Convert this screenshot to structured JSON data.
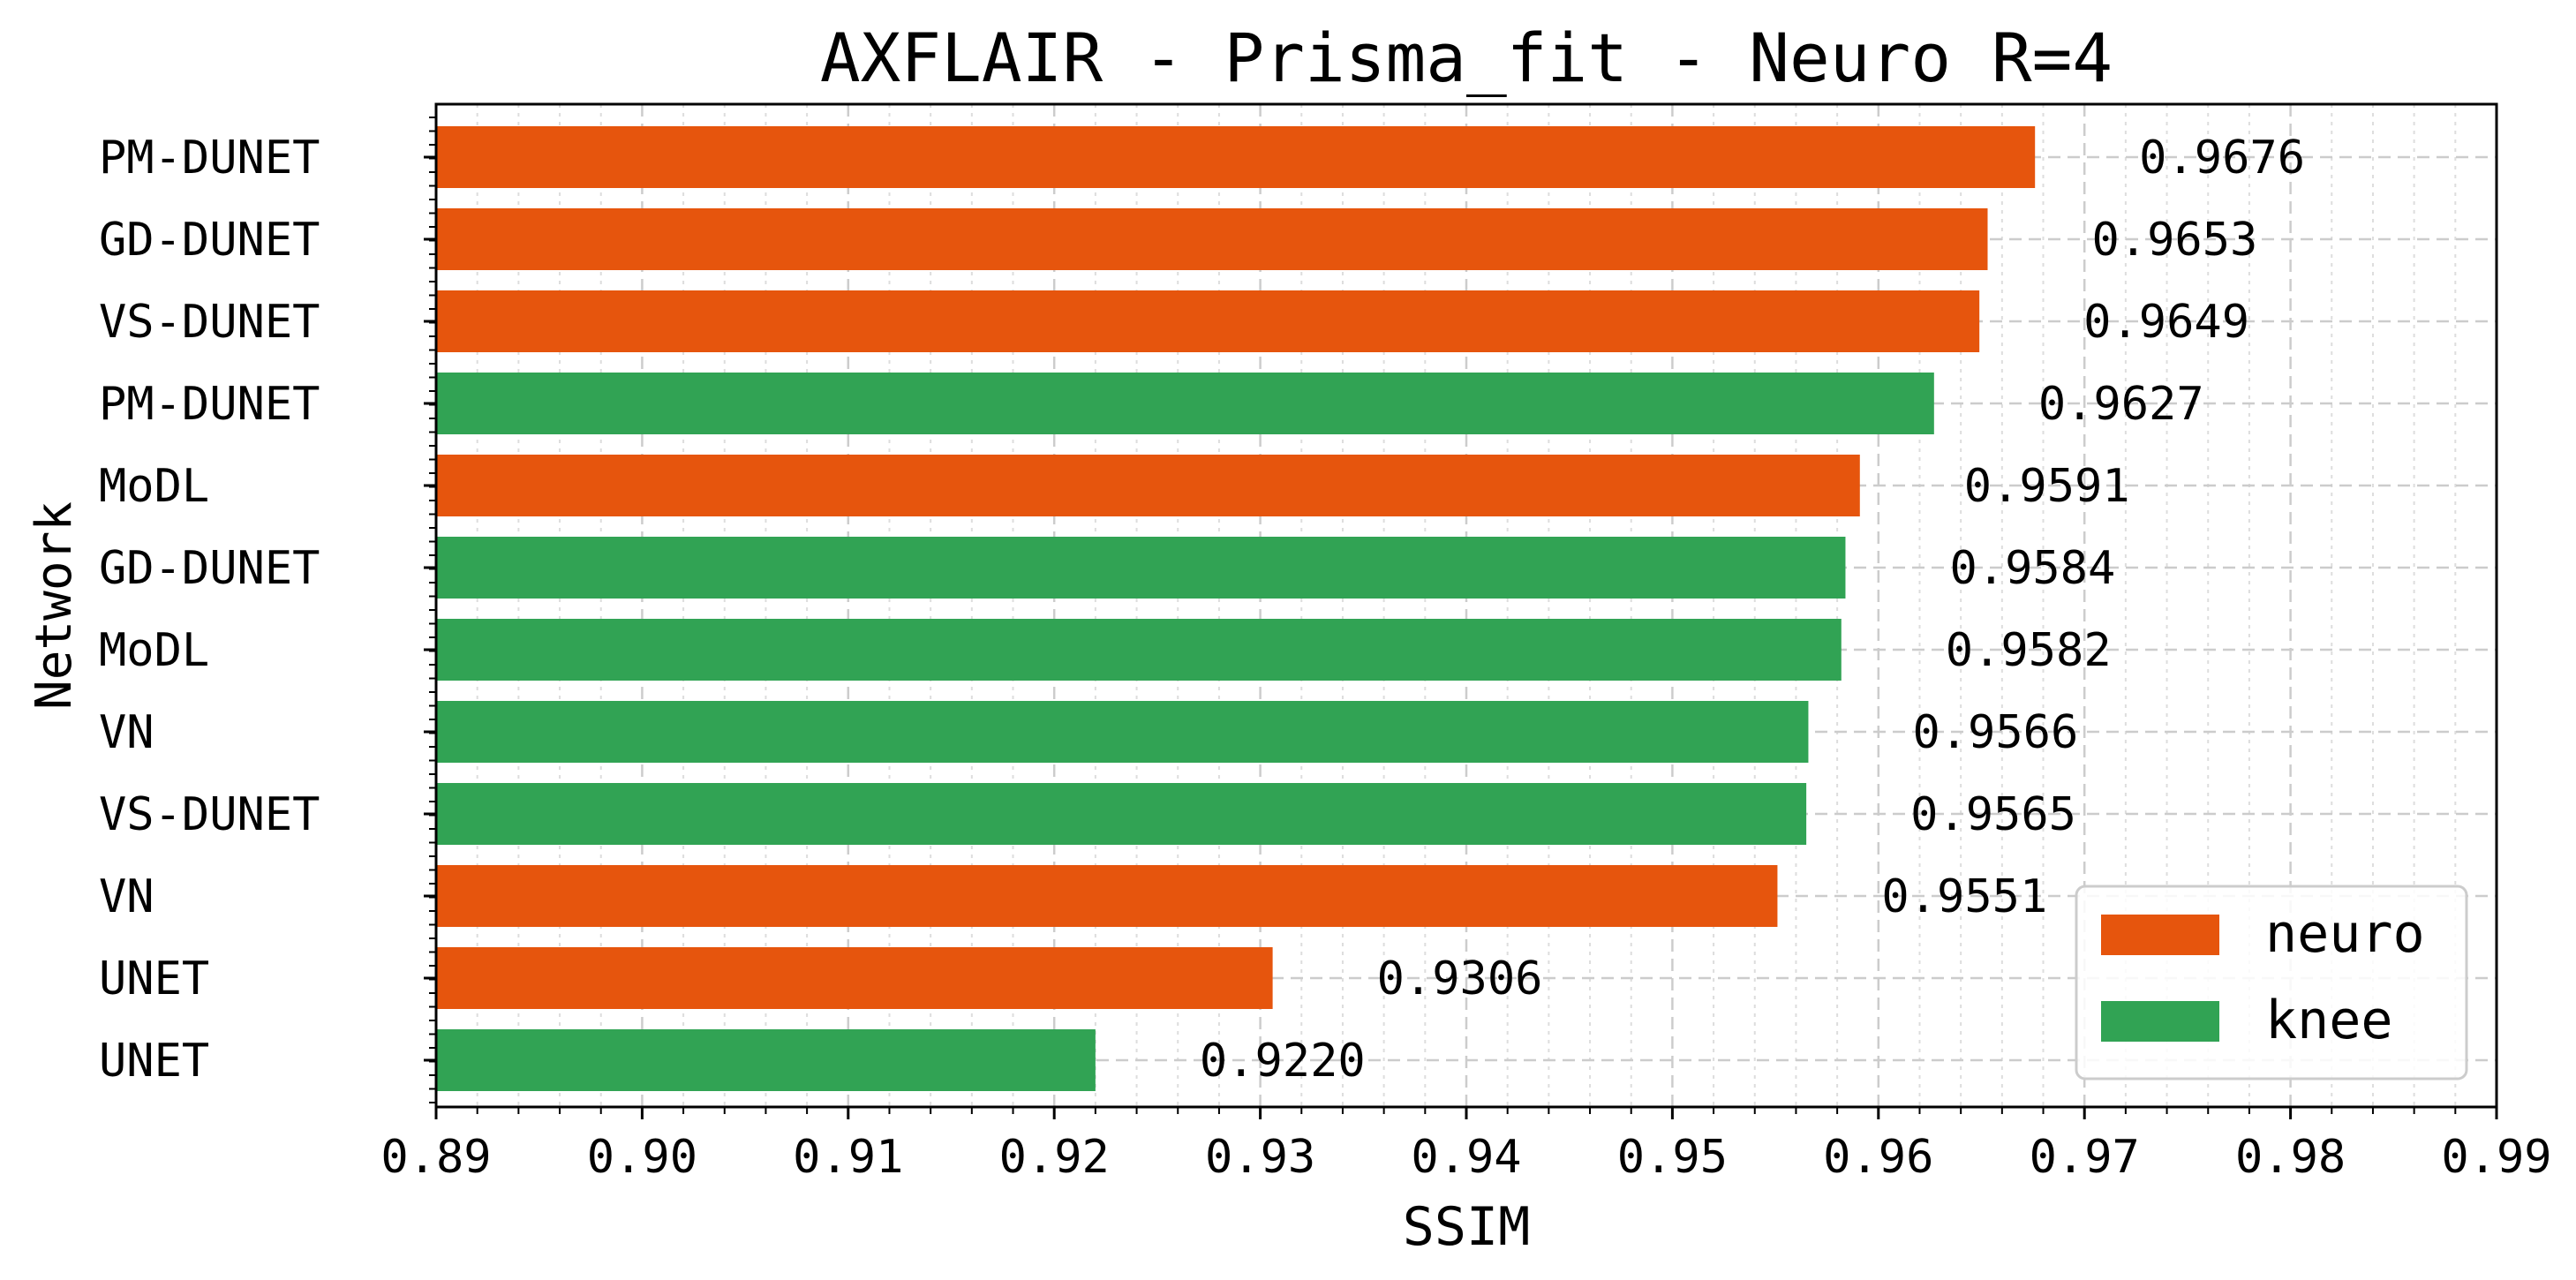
{
  "chart_data": {
    "type": "bar",
    "orientation": "horizontal",
    "title": "AXFLAIR - Prisma_fit - Neuro R=4",
    "xlabel": "SSIM",
    "ylabel": "Network",
    "xlim": [
      0.89,
      0.99
    ],
    "xticks": [
      "0.89",
      "0.90",
      "0.91",
      "0.92",
      "0.93",
      "0.94",
      "0.95",
      "0.96",
      "0.97",
      "0.98",
      "0.99"
    ],
    "grid": true,
    "legend_position": "lower-right",
    "series": [
      {
        "name": "neuro",
        "color": "#e6550d"
      },
      {
        "name": "knee",
        "color": "#31a354"
      }
    ],
    "bars": [
      {
        "label": "PM-DUNET",
        "value": 0.9676,
        "value_label": "0.9676",
        "series": "neuro"
      },
      {
        "label": "GD-DUNET",
        "value": 0.9653,
        "value_label": "0.9653",
        "series": "neuro"
      },
      {
        "label": "VS-DUNET",
        "value": 0.9649,
        "value_label": "0.9649",
        "series": "neuro"
      },
      {
        "label": "PM-DUNET",
        "value": 0.9627,
        "value_label": "0.9627",
        "series": "knee"
      },
      {
        "label": "MoDL",
        "value": 0.9591,
        "value_label": "0.9591",
        "series": "neuro"
      },
      {
        "label": "GD-DUNET",
        "value": 0.9584,
        "value_label": "0.9584",
        "series": "knee"
      },
      {
        "label": "MoDL",
        "value": 0.9582,
        "value_label": "0.9582",
        "series": "knee"
      },
      {
        "label": "VN",
        "value": 0.9566,
        "value_label": "0.9566",
        "series": "knee"
      },
      {
        "label": "VS-DUNET",
        "value": 0.9565,
        "value_label": "0.9565",
        "series": "knee"
      },
      {
        "label": "VN",
        "value": 0.9551,
        "value_label": "0.9551",
        "series": "neuro"
      },
      {
        "label": "UNET",
        "value": 0.9306,
        "value_label": "0.9306",
        "series": "neuro"
      },
      {
        "label": "UNET",
        "value": 0.922,
        "value_label": "0.9220",
        "series": "knee"
      }
    ]
  }
}
